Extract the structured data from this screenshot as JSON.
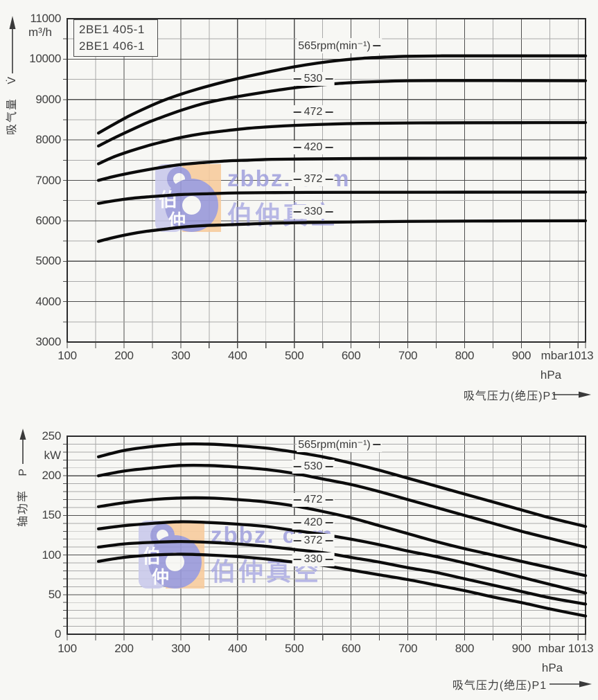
{
  "watermark": {
    "brand": "zbbz. com",
    "brand_cn": "伯仲真空",
    "logo_cn": [
      "伯",
      "仲"
    ],
    "colors": {
      "orange": "#f7cb9c",
      "purple": "#9797d9",
      "lavender": "#c9c9ec",
      "text": "#9a9adc"
    }
  },
  "chart_data": [
    {
      "type": "line",
      "title_box": [
        "2BE1 405-1",
        "2BE1 406-1"
      ],
      "ylabel_cn": "吸气量",
      "ylabel_sym": "V̇",
      "y_unit": "m³/h",
      "xlabel": "吸气压力(绝压)P1",
      "x_unit_mbar": "mbar",
      "x_unit_hpa": "hPa",
      "x_end_label": "1013",
      "xlim": [
        100,
        1013
      ],
      "ylim": [
        3000,
        11000
      ],
      "x_ticks": [
        100,
        200,
        300,
        400,
        500,
        600,
        700,
        800,
        900
      ],
      "y_ticks": [
        11000,
        10000,
        9000,
        8000,
        7000,
        6000,
        5000,
        4000,
        3000
      ],
      "grid": {
        "x_minor_step": 50,
        "y_minor_step": 500,
        "y_major_step": 1000
      },
      "series": [
        {
          "name": "565rpm(min⁻¹)",
          "points": [
            [
              155,
              8170
            ],
            [
              180,
              8370
            ],
            [
              210,
              8600
            ],
            [
              240,
              8800
            ],
            [
              270,
              8980
            ],
            [
              300,
              9130
            ],
            [
              340,
              9300
            ],
            [
              380,
              9450
            ],
            [
              420,
              9580
            ],
            [
              460,
              9700
            ],
            [
              500,
              9810
            ],
            [
              540,
              9900
            ],
            [
              580,
              9970
            ],
            [
              620,
              10020
            ],
            [
              660,
              10050
            ],
            [
              700,
              10070
            ],
            [
              760,
              10080
            ],
            [
              850,
              10080
            ],
            [
              930,
              10080
            ],
            [
              1013,
              10080
            ]
          ]
        },
        {
          "name": "530",
          "points": [
            [
              155,
              7850
            ],
            [
              180,
              8030
            ],
            [
              210,
              8230
            ],
            [
              240,
              8420
            ],
            [
              270,
              8580
            ],
            [
              300,
              8730
            ],
            [
              340,
              8900
            ],
            [
              380,
              9020
            ],
            [
              420,
              9120
            ],
            [
              460,
              9210
            ],
            [
              500,
              9290
            ],
            [
              540,
              9350
            ],
            [
              580,
              9400
            ],
            [
              620,
              9430
            ],
            [
              660,
              9450
            ],
            [
              700,
              9465
            ],
            [
              760,
              9470
            ],
            [
              850,
              9470
            ],
            [
              1013,
              9465
            ]
          ]
        },
        {
          "name": "472",
          "points": [
            [
              155,
              7410
            ],
            [
              180,
              7570
            ],
            [
              210,
              7720
            ],
            [
              240,
              7850
            ],
            [
              270,
              7960
            ],
            [
              300,
              8060
            ],
            [
              340,
              8160
            ],
            [
              380,
              8230
            ],
            [
              420,
              8290
            ],
            [
              460,
              8330
            ],
            [
              500,
              8360
            ],
            [
              560,
              8390
            ],
            [
              620,
              8410
            ],
            [
              700,
              8420
            ],
            [
              800,
              8425
            ],
            [
              1013,
              8430
            ]
          ]
        },
        {
          "name": "420",
          "points": [
            [
              155,
              7000
            ],
            [
              180,
              7090
            ],
            [
              210,
              7180
            ],
            [
              240,
              7260
            ],
            [
              270,
              7330
            ],
            [
              300,
              7390
            ],
            [
              340,
              7440
            ],
            [
              380,
              7480
            ],
            [
              420,
              7500
            ],
            [
              460,
              7520
            ],
            [
              520,
              7530
            ],
            [
              600,
              7540
            ],
            [
              700,
              7545
            ],
            [
              1013,
              7550
            ]
          ]
        },
        {
          "name": "372",
          "points": [
            [
              155,
              6430
            ],
            [
              180,
              6490
            ],
            [
              210,
              6550
            ],
            [
              240,
              6590
            ],
            [
              270,
              6620
            ],
            [
              300,
              6650
            ],
            [
              350,
              6670
            ],
            [
              400,
              6690
            ],
            [
              500,
              6700
            ],
            [
              600,
              6705
            ],
            [
              1013,
              6710
            ]
          ]
        },
        {
          "name": "330",
          "points": [
            [
              155,
              5490
            ],
            [
              180,
              5580
            ],
            [
              210,
              5670
            ],
            [
              240,
              5740
            ],
            [
              270,
              5790
            ],
            [
              300,
              5840
            ],
            [
              340,
              5880
            ],
            [
              380,
              5900
            ],
            [
              420,
              5920
            ],
            [
              460,
              5940
            ],
            [
              520,
              5955
            ],
            [
              600,
              5970
            ],
            [
              700,
              5985
            ],
            [
              850,
              5995
            ],
            [
              1013,
              6000
            ]
          ]
        }
      ]
    },
    {
      "type": "line",
      "ylabel_cn": "轴功率",
      "ylabel_sym": "P",
      "y_unit": "kW",
      "xlabel": "吸气压力(绝压)P1",
      "x_unit_mbar": "mbar",
      "x_unit_hpa": "hPa",
      "x_end_label": "1013",
      "xlim": [
        100,
        1013
      ],
      "ylim": [
        0,
        250
      ],
      "x_ticks": [
        100,
        200,
        300,
        400,
        500,
        600,
        700,
        800,
        900
      ],
      "y_ticks": [
        250,
        200,
        150,
        100,
        50,
        0
      ],
      "grid": {
        "x_minor_step": 50,
        "y_minor_step": 10,
        "y_major_step": 50
      },
      "series": [
        {
          "name": "565rpm(min⁻¹)",
          "points": [
            [
              155,
              224
            ],
            [
              200,
              232
            ],
            [
              250,
              237
            ],
            [
              300,
              240
            ],
            [
              350,
              240
            ],
            [
              400,
              238
            ],
            [
              450,
              235
            ],
            [
              500,
              230
            ],
            [
              550,
              224
            ],
            [
              600,
              216
            ],
            [
              650,
              207
            ],
            [
              700,
              197
            ],
            [
              750,
              187
            ],
            [
              800,
              177
            ],
            [
              850,
              167
            ],
            [
              900,
              157
            ],
            [
              950,
              147
            ],
            [
              1013,
              136
            ]
          ]
        },
        {
          "name": "530",
          "points": [
            [
              155,
              200
            ],
            [
              200,
              206
            ],
            [
              250,
              210
            ],
            [
              300,
              213
            ],
            [
              350,
              213
            ],
            [
              400,
              211
            ],
            [
              450,
              208
            ],
            [
              500,
              203
            ],
            [
              550,
              196
            ],
            [
              600,
              189
            ],
            [
              650,
              180
            ],
            [
              700,
              170
            ],
            [
              750,
              160
            ],
            [
              800,
              150
            ],
            [
              850,
              140
            ],
            [
              900,
              130
            ],
            [
              950,
              121
            ],
            [
              1013,
              110
            ]
          ]
        },
        {
          "name": "472",
          "points": [
            [
              155,
              161
            ],
            [
              200,
              166
            ],
            [
              250,
              170
            ],
            [
              300,
              172
            ],
            [
              350,
              172
            ],
            [
              400,
              170
            ],
            [
              450,
              167
            ],
            [
              500,
              162
            ],
            [
              550,
              155
            ],
            [
              600,
              147
            ],
            [
              650,
              137
            ],
            [
              700,
              127
            ],
            [
              750,
              117
            ],
            [
              800,
              108
            ],
            [
              850,
              100
            ],
            [
              900,
              92
            ],
            [
              950,
              84
            ],
            [
              1013,
              74
            ]
          ]
        },
        {
          "name": "420",
          "points": [
            [
              155,
              133
            ],
            [
              200,
              137
            ],
            [
              250,
              140
            ],
            [
              300,
              142
            ],
            [
              350,
              141
            ],
            [
              400,
              139
            ],
            [
              450,
              136
            ],
            [
              500,
              131
            ],
            [
              550,
              126
            ],
            [
              600,
              120
            ],
            [
              650,
              113
            ],
            [
              700,
              105
            ],
            [
              750,
              98
            ],
            [
              800,
              90
            ],
            [
              850,
              81
            ],
            [
              900,
              72
            ],
            [
              950,
              63
            ],
            [
              1013,
              52
            ]
          ]
        },
        {
          "name": "372",
          "points": [
            [
              155,
              110
            ],
            [
              200,
              114
            ],
            [
              250,
              116
            ],
            [
              300,
              117
            ],
            [
              350,
              116
            ],
            [
              400,
              114
            ],
            [
              450,
              111
            ],
            [
              500,
              107
            ],
            [
              550,
              103
            ],
            [
              600,
              97
            ],
            [
              650,
              91
            ],
            [
              700,
              84
            ],
            [
              750,
              78
            ],
            [
              800,
              70
            ],
            [
              850,
              62
            ],
            [
              900,
              54
            ],
            [
              950,
              46
            ],
            [
              1013,
              38
            ]
          ]
        },
        {
          "name": "330",
          "points": [
            [
              155,
              92
            ],
            [
              200,
              97
            ],
            [
              250,
              100
            ],
            [
              300,
              101
            ],
            [
              350,
              100
            ],
            [
              400,
              98
            ],
            [
              450,
              95
            ],
            [
              500,
              91
            ],
            [
              550,
              87
            ],
            [
              600,
              81
            ],
            [
              650,
              75
            ],
            [
              700,
              69
            ],
            [
              750,
              62
            ],
            [
              800,
              55
            ],
            [
              850,
              47
            ],
            [
              900,
              40
            ],
            [
              950,
              32
            ],
            [
              1013,
              23
            ]
          ]
        }
      ]
    }
  ]
}
